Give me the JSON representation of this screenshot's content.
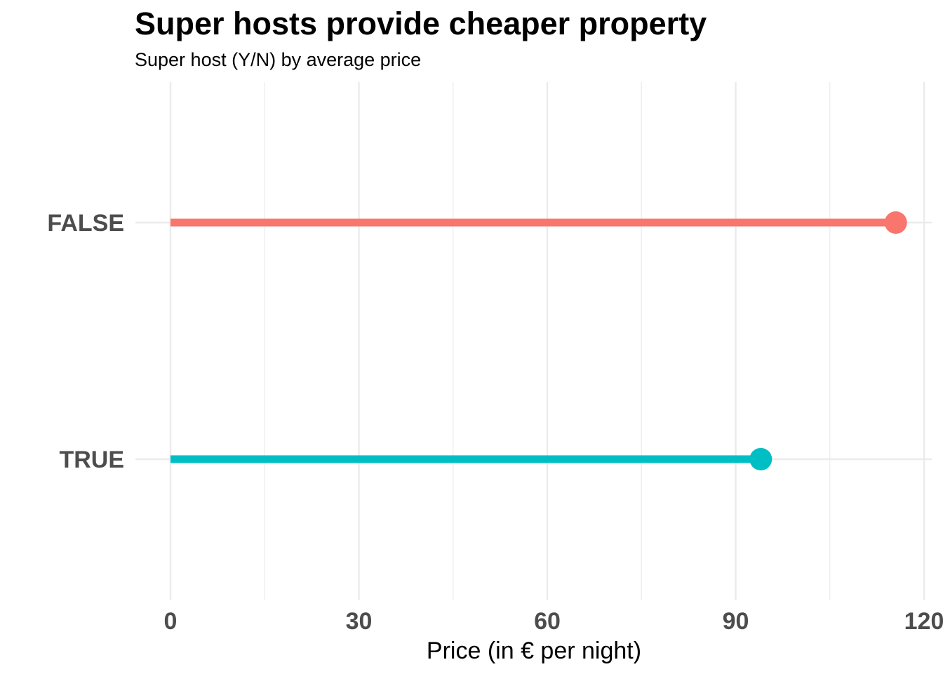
{
  "chart_data": {
    "type": "lollipop",
    "title": "Super hosts provide cheaper property",
    "subtitle": "Super host (Y/N) by average price",
    "xlabel": "Price (in € per night)",
    "ylabel": "",
    "xlim": [
      0,
      120
    ],
    "x_ticks": [
      "0",
      "30",
      "60",
      "90",
      "120"
    ],
    "categories": [
      "FALSE",
      "TRUE"
    ],
    "values": [
      115.5,
      94
    ],
    "colors": [
      "#F8766D",
      "#00BFC4"
    ],
    "grid": true,
    "legend": "none"
  }
}
